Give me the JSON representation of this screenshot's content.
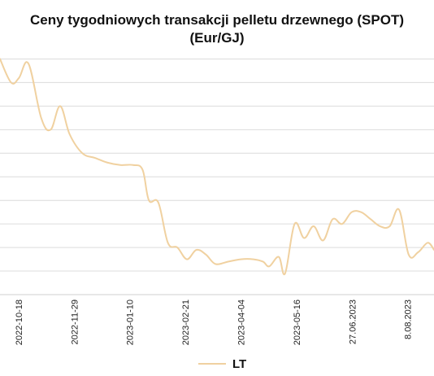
{
  "chart_data": {
    "type": "line",
    "title": [
      "Ceny tygodniowych transakcji pelletu drzewnego (SPOT)",
      "(Eur/GJ)"
    ],
    "x_ticks": [
      "2022-10-18",
      "2022-11-29",
      "2023-01-10",
      "2023-02-21",
      "2023-04-04",
      "2023-05-16",
      "27.06.2023",
      "8.08.2023"
    ],
    "gridlines_y": [
      0,
      1,
      2,
      3,
      4,
      5,
      6,
      7,
      8,
      9,
      10
    ],
    "grid": true,
    "legend_position": "bottom",
    "series": [
      {
        "name": "LT",
        "color": "#f0d1a0",
        "points": [
          [
            0,
            10.0
          ],
          [
            0.35,
            9.0
          ],
          [
            0.6,
            9.2
          ],
          [
            0.9,
            9.8
          ],
          [
            1.3,
            7.5
          ],
          [
            1.6,
            7.0
          ],
          [
            1.9,
            8.0
          ],
          [
            2.2,
            6.8
          ],
          [
            2.6,
            6.0
          ],
          [
            3.0,
            5.8
          ],
          [
            3.4,
            5.6
          ],
          [
            3.8,
            5.5
          ],
          [
            4.2,
            5.5
          ],
          [
            4.5,
            5.3
          ],
          [
            4.7,
            4.0
          ],
          [
            5.0,
            3.9
          ],
          [
            5.3,
            2.2
          ],
          [
            5.6,
            2.0
          ],
          [
            5.9,
            1.5
          ],
          [
            6.2,
            1.9
          ],
          [
            6.5,
            1.7
          ],
          [
            6.8,
            1.3
          ],
          [
            7.2,
            1.4
          ],
          [
            7.6,
            1.5
          ],
          [
            8.0,
            1.5
          ],
          [
            8.3,
            1.4
          ],
          [
            8.5,
            1.2
          ],
          [
            8.8,
            1.6
          ],
          [
            9.0,
            0.9
          ],
          [
            9.3,
            3.0
          ],
          [
            9.6,
            2.4
          ],
          [
            9.9,
            2.9
          ],
          [
            10.2,
            2.3
          ],
          [
            10.5,
            3.2
          ],
          [
            10.8,
            3.0
          ],
          [
            11.1,
            3.5
          ],
          [
            11.4,
            3.5
          ],
          [
            11.7,
            3.2
          ],
          [
            12.0,
            2.9
          ],
          [
            12.3,
            2.9
          ],
          [
            12.6,
            3.6
          ],
          [
            12.9,
            1.7
          ],
          [
            13.2,
            1.8
          ],
          [
            13.5,
            2.2
          ],
          [
            13.7,
            1.9
          ]
        ]
      }
    ]
  }
}
